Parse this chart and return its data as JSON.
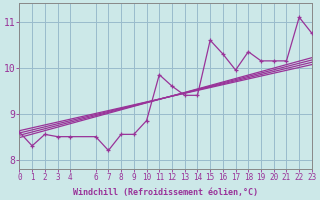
{
  "xlabel": "Windchill (Refroidissement éolien,°C)",
  "background_color": "#cce8e8",
  "grid_color": "#99bbcc",
  "line_color": "#993399",
  "spine_color": "#888888",
  "x_data": [
    0,
    1,
    2,
    3,
    4,
    6,
    7,
    8,
    9,
    10,
    11,
    12,
    13,
    14,
    15,
    16,
    17,
    18,
    19,
    20,
    21,
    22,
    23
  ],
  "y_data": [
    8.6,
    8.3,
    8.55,
    8.5,
    8.5,
    8.5,
    8.2,
    8.55,
    8.55,
    8.85,
    9.85,
    9.6,
    9.4,
    9.4,
    10.6,
    10.3,
    9.95,
    10.35,
    10.15,
    10.15,
    10.15,
    11.1,
    10.75
  ],
  "reg_lines": [
    {
      "x": [
        0,
        23
      ],
      "y": [
        8.58,
        10.12
      ]
    },
    {
      "x": [
        0,
        23
      ],
      "y": [
        8.48,
        10.22
      ]
    },
    {
      "x": [
        0,
        23
      ],
      "y": [
        8.53,
        10.17
      ]
    },
    {
      "x": [
        0,
        23
      ],
      "y": [
        8.63,
        10.07
      ]
    }
  ],
  "xlim": [
    0,
    23
  ],
  "ylim": [
    7.8,
    11.4
  ],
  "yticks": [
    8,
    9,
    10,
    11
  ],
  "xticks": [
    0,
    1,
    2,
    3,
    4,
    6,
    7,
    8,
    9,
    10,
    11,
    12,
    13,
    14,
    15,
    16,
    17,
    18,
    19,
    20,
    21,
    22,
    23
  ],
  "xtick_labels": [
    "0",
    "1",
    "2",
    "3",
    "4",
    "6",
    "7",
    "8",
    "9",
    "10",
    "11",
    "12",
    "13",
    "14",
    "15",
    "16",
    "17",
    "18",
    "19",
    "20",
    "21",
    "22",
    "23"
  ],
  "tick_fontsize": 5.5,
  "ytick_fontsize": 7,
  "xlabel_fontsize": 6
}
